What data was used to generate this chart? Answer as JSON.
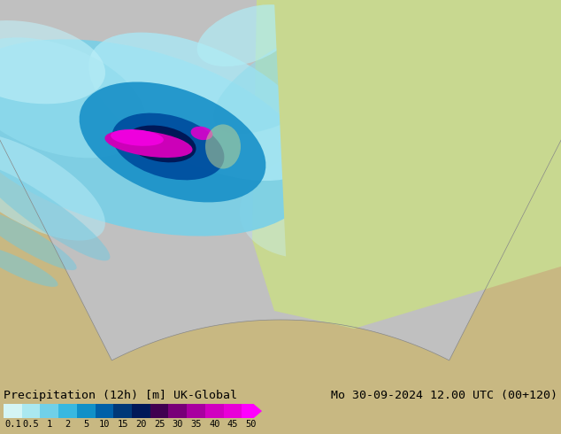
{
  "title_left": "Precipitation (12h) [m] UK-Global",
  "title_right": "Mo 30-09-2024 12.00 UTC (00+120)",
  "colorbar_labels": [
    "0.1",
    "0.5",
    "1",
    "2",
    "5",
    "10",
    "15",
    "20",
    "25",
    "30",
    "35",
    "40",
    "45",
    "50"
  ],
  "colorbar_colors": [
    "#d4f5f5",
    "#aae8f0",
    "#70d0e8",
    "#38b8e0",
    "#1090c8",
    "#0060a8",
    "#003878",
    "#001858",
    "#400050",
    "#780078",
    "#a800a0",
    "#d000c0",
    "#e800d8",
    "#ff00ff"
  ],
  "bg_color": "#c8b882",
  "land_color": "#c8b882",
  "sea_color": "#b0b0b0",
  "europe_green": "#c8d890",
  "domain_gray": "#c0c0c0",
  "figsize": [
    6.34,
    4.9
  ],
  "dpi": 100,
  "font_size_title": 9.5,
  "font_size_ticks": 7.5
}
